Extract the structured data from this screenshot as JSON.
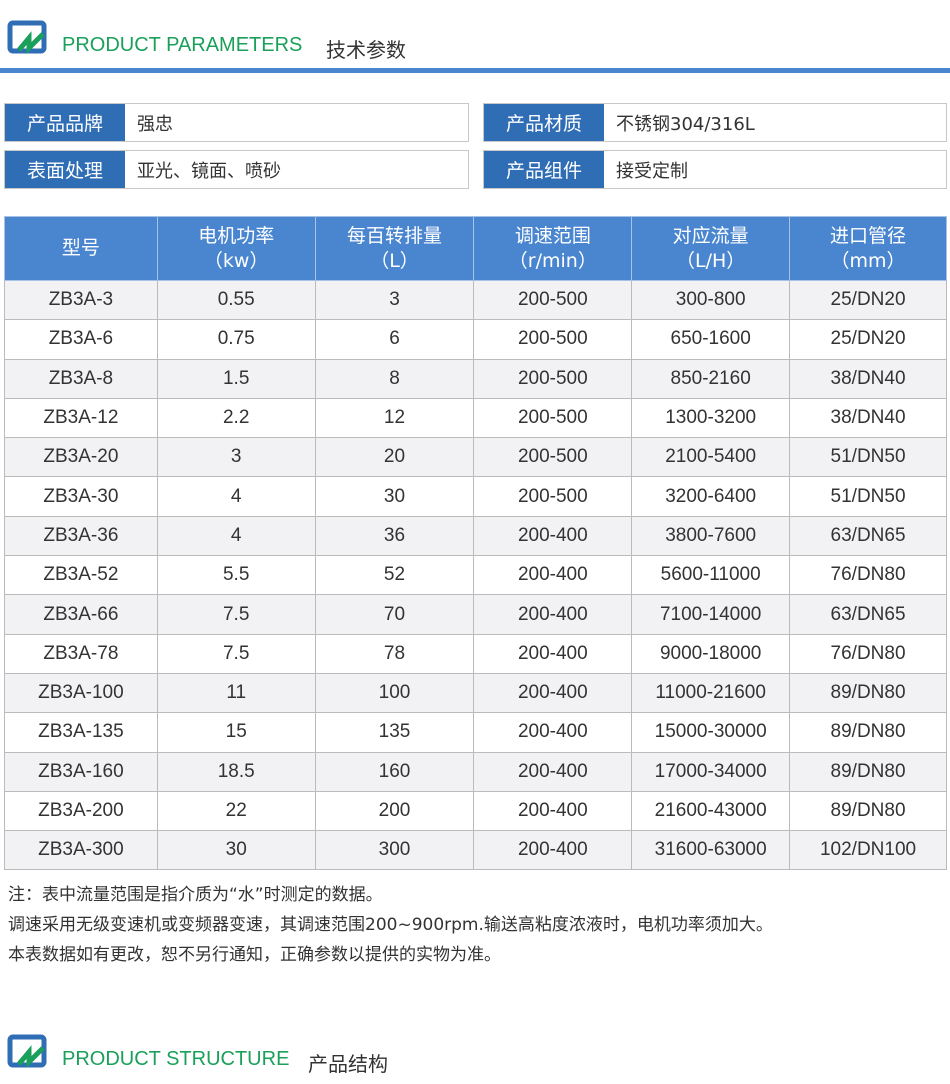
{
  "section1": {
    "title_en": "PRODUCT PARAMETERS",
    "title_cn": "技术参数"
  },
  "specs": [
    {
      "label": "产品品牌",
      "value": "强忠"
    },
    {
      "label": "产品材质",
      "value": "不锈钢304/316L"
    },
    {
      "label": "表面处理",
      "value": "亚光、镜面、喷砂"
    },
    {
      "label": "产品组件",
      "value": "接受定制"
    }
  ],
  "table": {
    "headers": [
      [
        "型号",
        ""
      ],
      [
        "电机功率",
        "（kw）"
      ],
      [
        "每百转排量",
        "（L）"
      ],
      [
        "调速范围",
        "（r/min）"
      ],
      [
        "对应流量",
        "（L/H）"
      ],
      [
        "进口管径",
        "（mm）"
      ]
    ],
    "rows": [
      [
        "ZB3A-3",
        "0.55",
        "3",
        "200-500",
        "300-800",
        "25/DN20"
      ],
      [
        "ZB3A-6",
        "0.75",
        "6",
        "200-500",
        "650-1600",
        "25/DN20"
      ],
      [
        "ZB3A-8",
        "1.5",
        "8",
        "200-500",
        "850-2160",
        "38/DN40"
      ],
      [
        "ZB3A-12",
        "2.2",
        "12",
        "200-500",
        "1300-3200",
        "38/DN40"
      ],
      [
        "ZB3A-20",
        "3",
        "20",
        "200-500",
        "2100-5400",
        "51/DN50"
      ],
      [
        "ZB3A-30",
        "4",
        "30",
        "200-500",
        "3200-6400",
        "51/DN50"
      ],
      [
        "ZB3A-36",
        "4",
        "36",
        "200-400",
        "3800-7600",
        "63/DN65"
      ],
      [
        "ZB3A-52",
        "5.5",
        "52",
        "200-400",
        "5600-11000",
        "76/DN80"
      ],
      [
        "ZB3A-66",
        "7.5",
        "70",
        "200-400",
        "7100-14000",
        "63/DN65"
      ],
      [
        "ZB3A-78",
        "7.5",
        "78",
        "200-400",
        "9000-18000",
        "76/DN80"
      ],
      [
        "ZB3A-100",
        "11",
        "100",
        "200-400",
        "11000-21600",
        "89/DN80"
      ],
      [
        "ZB3A-135",
        "15",
        "135",
        "200-400",
        "15000-30000",
        "89/DN80"
      ],
      [
        "ZB3A-160",
        "18.5",
        "160",
        "200-400",
        "17000-34000",
        "89/DN80"
      ],
      [
        "ZB3A-200",
        "22",
        "200",
        "200-400",
        "21600-43000",
        "89/DN80"
      ],
      [
        "ZB3A-300",
        "30",
        "300",
        "200-400",
        "31600-63000",
        "102/DN100"
      ]
    ]
  },
  "notes": [
    "注：表中流量范围是指介质为“水”时测定的数据。",
    "调速采用无级变速机或变频器变速，其调速范围200~900rpm.输送高粘度浓液时，电机功率须加大。",
    "本表数据如有更改，恕不另行通知，正确参数以提供的实物为准。"
  ],
  "section2": {
    "title_en": "PRODUCT STRUCTURE",
    "title_cn": "产品结构"
  },
  "colors": {
    "accent": "#4a86cf",
    "label_bg": "#2f6db5",
    "title_green": "#1aa05a"
  }
}
